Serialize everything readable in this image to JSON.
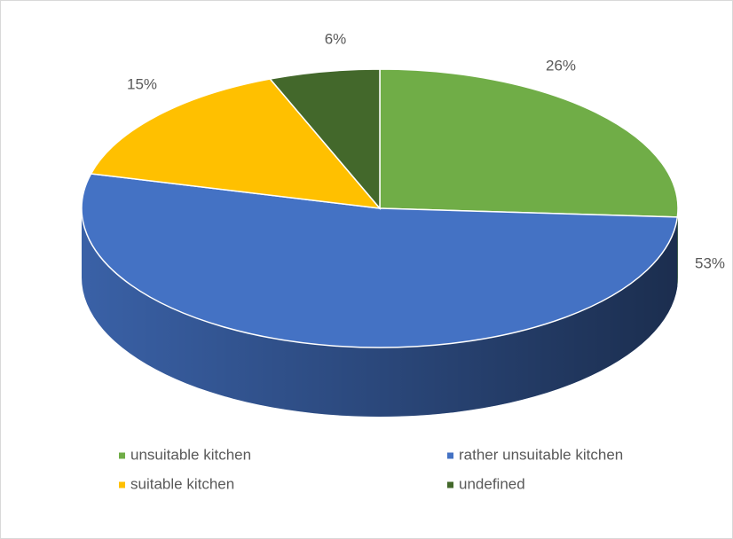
{
  "chart_data": {
    "type": "pie3d",
    "categories": [
      "unsuitable kitchen",
      "rather unsuitable kitchen",
      "suitable kitchen",
      "undefined"
    ],
    "values": [
      26,
      53,
      15,
      6
    ],
    "value_labels": [
      "26%",
      "53%",
      "15%",
      "6%"
    ],
    "colors": [
      "#70ad47",
      "#4472c4",
      "#ffc000",
      "#43682b"
    ],
    "legend": "bottom"
  }
}
